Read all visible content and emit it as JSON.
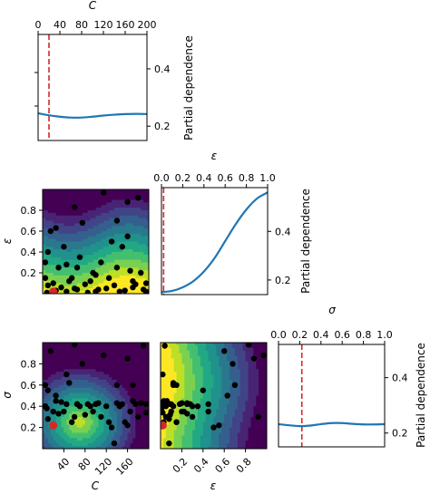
{
  "chart_data": {
    "type": "partial-dependence-matrix",
    "colors": {
      "pd_line": "#1f77b4",
      "marker_line": "#d62728",
      "point": "#000000",
      "best_point": "#d62728",
      "contour_low": "#440154",
      "contour_high": "#fde725"
    },
    "variables": [
      {
        "name": "C",
        "range": [
          0,
          200
        ],
        "ticks": [
          "0",
          "40",
          "80",
          "120",
          "160",
          "200"
        ],
        "ticks_bottom": [
          "40",
          "80",
          "120",
          "160"
        ],
        "best": 20
      },
      {
        "name": "ε",
        "range": [
          0,
          1
        ],
        "ticks": [
          "0.0",
          "0.2",
          "0.4",
          "0.6",
          "0.8",
          "1.0"
        ],
        "ticks_left": [
          "0.2",
          "0.4",
          "0.6",
          "0.8"
        ],
        "ticks_bottom": [
          "0.2",
          "0.4",
          "0.6",
          "0.8"
        ],
        "best": 0.02
      },
      {
        "name": "σ",
        "range": [
          0,
          1
        ],
        "ticks": [
          "0.0",
          "0.2",
          "0.4",
          "0.6",
          "0.8",
          "1.0"
        ],
        "ticks_left": [
          "0.2",
          "0.4",
          "0.6",
          "0.8"
        ],
        "best": 0.22
      }
    ],
    "diagonal": [
      {
        "variable": "C",
        "ylabel": "Partial dependence",
        "yticks": [
          "0.2",
          "0.4"
        ],
        "ylim": [
          0.15,
          0.52
        ],
        "x": [
          0,
          20,
          40,
          60,
          80,
          100,
          120,
          140,
          160,
          180,
          200
        ],
        "y": [
          0.245,
          0.238,
          0.233,
          0.23,
          0.23,
          0.233,
          0.237,
          0.24,
          0.242,
          0.243,
          0.242
        ]
      },
      {
        "variable": "ε",
        "ylabel": "Partial dependence",
        "yticks": [
          "0.2",
          "0.4"
        ],
        "ylim": [
          0.14,
          0.58
        ],
        "x": [
          0,
          0.1,
          0.2,
          0.3,
          0.4,
          0.5,
          0.6,
          0.7,
          0.8,
          0.9,
          1.0
        ],
        "y": [
          0.15,
          0.155,
          0.17,
          0.195,
          0.235,
          0.29,
          0.36,
          0.43,
          0.49,
          0.535,
          0.56
        ]
      },
      {
        "variable": "σ",
        "ylabel": "Partial dependence",
        "yticks": [
          "0.2",
          "0.4"
        ],
        "ylim": [
          0.15,
          0.52
        ],
        "x": [
          0,
          0.1,
          0.2,
          0.3,
          0.4,
          0.5,
          0.6,
          0.7,
          0.8,
          0.9,
          1.0
        ],
        "y": [
          0.232,
          0.228,
          0.225,
          0.227,
          0.232,
          0.236,
          0.236,
          0.233,
          0.231,
          0.231,
          0.232
        ]
      }
    ],
    "samples": {
      "C": [
        115,
        180,
        160,
        60,
        75,
        25,
        15,
        130,
        5,
        10,
        30,
        45,
        70,
        110,
        150,
        95,
        5,
        90,
        100,
        125,
        140,
        165,
        185,
        10,
        20,
        35,
        50,
        65,
        80,
        100,
        120,
        135,
        155,
        170,
        190,
        8,
        25,
        45,
        60,
        85,
        105,
        145,
        175,
        195,
        55,
        65,
        170,
        40,
        140,
        160,
        195
      ],
      "epsilon": [
        0.97,
        0.92,
        0.88,
        0.83,
        0.68,
        0.63,
        0.6,
        0.5,
        0.3,
        0.4,
        0.25,
        0.28,
        0.35,
        0.3,
        0.45,
        0.2,
        0.15,
        0.12,
        0.18,
        0.15,
        0.25,
        0.22,
        0.2,
        0.08,
        0.1,
        0.06,
        0.12,
        0.04,
        0.09,
        0.02,
        0.05,
        0.08,
        0.03,
        0.06,
        0.04,
        0.01,
        0.03,
        0.02,
        0.05,
        0.01,
        0.04,
        0.02,
        0.09,
        0.02,
        0.15,
        0.25,
        0.12,
        0.45,
        0.7,
        0.55,
        0.1
      ],
      "sigma": [
        0.88,
        0.3,
        0.85,
        0.98,
        0.8,
        0.5,
        0.92,
        0.2,
        0.4,
        0.55,
        0.33,
        0.42,
        0.4,
        0.3,
        0.42,
        0.35,
        0.6,
        0.4,
        0.42,
        0.25,
        0.43,
        0.35,
        0.43,
        0.28,
        0.35,
        0.44,
        0.62,
        0.42,
        0.32,
        0.42,
        0.4,
        0.05,
        0.25,
        0.45,
        0.97,
        0.38,
        0.45,
        0.7,
        0.3,
        0.42,
        0.43,
        0.4,
        0.42,
        0.34,
        0.25,
        0.42,
        0.6,
        0.35,
        0.6,
        0.22,
        0.42
      ]
    }
  }
}
